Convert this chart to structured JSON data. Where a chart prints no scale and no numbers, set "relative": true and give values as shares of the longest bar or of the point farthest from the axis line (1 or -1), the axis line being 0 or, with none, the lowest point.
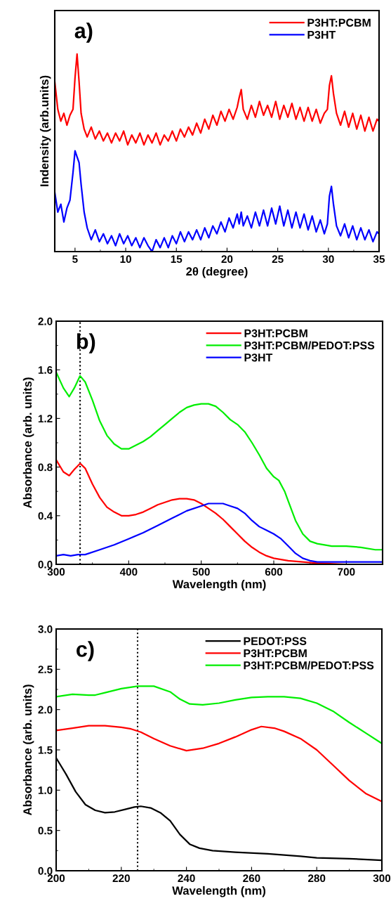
{
  "chart_data": [
    {
      "type": "line",
      "title": "a)",
      "xlabel": "2θ (degree)",
      "ylabel": "Indensity (arb.units)",
      "relative": true,
      "tick_labels": "x",
      "legend": "top right",
      "x": [
        3.0,
        3.3,
        3.6,
        3.9,
        4.2,
        4.5,
        4.8,
        5.0,
        5.2,
        5.4,
        5.6,
        5.9,
        6.2,
        6.6,
        7.0,
        7.4,
        7.8,
        8.2,
        8.6,
        9.0,
        9.4,
        9.8,
        10.2,
        10.6,
        11.0,
        11.4,
        11.8,
        12.2,
        12.6,
        13.0,
        13.4,
        13.8,
        14.2,
        14.6,
        15.0,
        15.4,
        15.8,
        16.2,
        16.6,
        17.0,
        17.4,
        17.8,
        18.2,
        18.6,
        19.0,
        19.4,
        19.8,
        20.2,
        20.6,
        21.0,
        21.2,
        21.4,
        21.6,
        22.0,
        22.4,
        22.8,
        23.2,
        23.6,
        24.0,
        24.4,
        24.8,
        25.2,
        25.6,
        26.0,
        26.4,
        26.8,
        27.2,
        27.6,
        28.0,
        28.4,
        28.8,
        29.2,
        29.6,
        29.9,
        30.1,
        30.3,
        30.5,
        30.8,
        31.2,
        31.6,
        32.0,
        32.4,
        32.8,
        33.2,
        33.6,
        34.0,
        34.4,
        34.8,
        35.0
      ],
      "xlim": [
        3,
        35
      ],
      "xticks": [
        5,
        10,
        15,
        20,
        25,
        30,
        35
      ],
      "series": [
        {
          "name": "P3HT:PCBM",
          "color": "#ff0000",
          "values": [
            0.86,
            0.72,
            0.66,
            0.7,
            0.64,
            0.69,
            0.72,
            0.88,
            1.0,
            0.86,
            0.7,
            0.62,
            0.58,
            0.63,
            0.57,
            0.61,
            0.56,
            0.6,
            0.55,
            0.6,
            0.56,
            0.61,
            0.54,
            0.59,
            0.55,
            0.6,
            0.54,
            0.59,
            0.55,
            0.6,
            0.54,
            0.59,
            0.56,
            0.61,
            0.56,
            0.62,
            0.58,
            0.63,
            0.59,
            0.65,
            0.6,
            0.67,
            0.62,
            0.69,
            0.64,
            0.71,
            0.66,
            0.72,
            0.67,
            0.73,
            0.78,
            0.82,
            0.72,
            0.67,
            0.74,
            0.68,
            0.76,
            0.69,
            0.74,
            0.68,
            0.76,
            0.67,
            0.74,
            0.68,
            0.75,
            0.67,
            0.73,
            0.66,
            0.73,
            0.66,
            0.72,
            0.65,
            0.7,
            0.72,
            0.84,
            0.89,
            0.8,
            0.7,
            0.64,
            0.71,
            0.63,
            0.7,
            0.62,
            0.69,
            0.61,
            0.68,
            0.61,
            0.67,
            0.66
          ]
        },
        {
          "name": "P3HT",
          "color": "#0000ff",
          "values": [
            0.3,
            0.2,
            0.24,
            0.15,
            0.22,
            0.26,
            0.4,
            0.51,
            0.48,
            0.45,
            0.34,
            0.2,
            0.12,
            0.06,
            0.11,
            0.05,
            0.09,
            0.04,
            0.08,
            0.03,
            0.09,
            0.04,
            0.08,
            0.03,
            0.07,
            0.02,
            0.07,
            0.03,
            0.0,
            0.06,
            0.02,
            0.07,
            0.02,
            0.08,
            0.04,
            0.1,
            0.05,
            0.1,
            0.06,
            0.11,
            0.06,
            0.12,
            0.07,
            0.13,
            0.09,
            0.15,
            0.1,
            0.17,
            0.12,
            0.19,
            0.14,
            0.2,
            0.13,
            0.18,
            0.12,
            0.2,
            0.13,
            0.21,
            0.13,
            0.22,
            0.14,
            0.23,
            0.13,
            0.21,
            0.12,
            0.2,
            0.12,
            0.19,
            0.11,
            0.18,
            0.1,
            0.16,
            0.09,
            0.14,
            0.28,
            0.33,
            0.24,
            0.13,
            0.08,
            0.14,
            0.07,
            0.13,
            0.06,
            0.12,
            0.06,
            0.11,
            0.05,
            0.1,
            0.09
          ]
        }
      ]
    },
    {
      "type": "line",
      "title": "b)",
      "xlabel": "Wavelength (nm)",
      "ylabel": "Absorbance (arb. units)",
      "legend": "top right",
      "xlim": [
        300,
        750
      ],
      "xticks": [
        300,
        400,
        500,
        600,
        700
      ],
      "ylim": [
        0,
        2.0
      ],
      "yticks": [
        {
          "value": 0,
          "label": "0.0"
        },
        {
          "value": 0.4,
          "label": "0.4"
        },
        {
          "value": 0.8,
          "label": "0.8"
        },
        {
          "value": 1.2,
          "label": "1.2"
        },
        {
          "value": 1.6,
          "label": "1.6"
        },
        {
          "value": 2.0,
          "label": "2.0"
        }
      ],
      "ref_lines": [
        {
          "axis": "x",
          "value": 333,
          "label": null,
          "color": "#000000",
          "line_style": "dotted"
        }
      ],
      "series": [
        {
          "name": "P3HT:PCBM",
          "color": "#ff0000",
          "x": [
            300,
            310,
            318,
            325,
            333,
            340,
            350,
            360,
            370,
            380,
            390,
            400,
            410,
            420,
            430,
            440,
            450,
            460,
            470,
            480,
            490,
            500,
            510,
            520,
            530,
            540,
            550,
            560,
            570,
            580,
            590,
            600,
            620,
            640,
            660,
            700,
            750
          ],
          "values": [
            0.86,
            0.76,
            0.73,
            0.78,
            0.83,
            0.79,
            0.66,
            0.55,
            0.47,
            0.43,
            0.4,
            0.4,
            0.41,
            0.43,
            0.46,
            0.49,
            0.51,
            0.53,
            0.54,
            0.54,
            0.53,
            0.5,
            0.46,
            0.42,
            0.37,
            0.31,
            0.25,
            0.19,
            0.14,
            0.1,
            0.07,
            0.05,
            0.03,
            0.02,
            0.01,
            0.0,
            0.0
          ]
        },
        {
          "name": "P3HT:PCBM/PEDOT:PSS",
          "color": "#00ee00",
          "x": [
            300,
            310,
            318,
            325,
            333,
            340,
            350,
            360,
            370,
            380,
            390,
            400,
            410,
            420,
            430,
            440,
            450,
            460,
            470,
            480,
            490,
            500,
            510,
            520,
            530,
            540,
            550,
            560,
            570,
            580,
            590,
            600,
            607,
            615,
            620,
            630,
            640,
            650,
            660,
            680,
            700,
            720,
            740,
            750
          ],
          "values": [
            1.58,
            1.45,
            1.38,
            1.45,
            1.55,
            1.5,
            1.35,
            1.18,
            1.06,
            0.99,
            0.95,
            0.95,
            0.98,
            1.01,
            1.05,
            1.1,
            1.15,
            1.2,
            1.25,
            1.29,
            1.31,
            1.32,
            1.32,
            1.3,
            1.25,
            1.19,
            1.15,
            1.09,
            1.0,
            0.9,
            0.79,
            0.72,
            0.69,
            0.6,
            0.52,
            0.36,
            0.25,
            0.19,
            0.17,
            0.15,
            0.15,
            0.14,
            0.12,
            0.12
          ]
        },
        {
          "name": "P3HT",
          "color": "#0000ff",
          "x": [
            300,
            310,
            320,
            330,
            340,
            360,
            380,
            400,
            420,
            440,
            460,
            480,
            500,
            510,
            520,
            530,
            540,
            550,
            560,
            570,
            580,
            590,
            600,
            610,
            620,
            630,
            640,
            650,
            660,
            700,
            750
          ],
          "values": [
            0.07,
            0.08,
            0.07,
            0.08,
            0.08,
            0.12,
            0.16,
            0.21,
            0.26,
            0.32,
            0.38,
            0.44,
            0.48,
            0.5,
            0.5,
            0.5,
            0.48,
            0.46,
            0.42,
            0.36,
            0.31,
            0.28,
            0.25,
            0.21,
            0.15,
            0.09,
            0.05,
            0.03,
            0.02,
            0.02,
            0.02
          ]
        }
      ]
    },
    {
      "type": "line",
      "title": "c)",
      "xlabel": "Wavelength (nm)",
      "ylabel": "Absorbance (arb. units)",
      "legend": "top right",
      "xlim": [
        200,
        300
      ],
      "xticks": [
        200,
        220,
        240,
        260,
        280,
        300
      ],
      "ylim": [
        0,
        3.0
      ],
      "yticks": [
        {
          "value": 0,
          "label": "0.0"
        },
        {
          "value": 0.5,
          "label": "0.5"
        },
        {
          "value": 1.0,
          "label": "1.0"
        },
        {
          "value": 1.5,
          "label": "1.5"
        },
        {
          "value": 2.0,
          "label": "2.0"
        },
        {
          "value": 2.5,
          "label": "2.5"
        },
        {
          "value": 3.0,
          "label": "3.0"
        }
      ],
      "ref_lines": [
        {
          "axis": "x",
          "value": 225,
          "label": null,
          "color": "#000000",
          "line_style": "dotted"
        }
      ],
      "series": [
        {
          "name": "PEDOT:PSS",
          "color": "#000000",
          "x": [
            200,
            203,
            206,
            209,
            212,
            215,
            218,
            221,
            224,
            226,
            229,
            232,
            235,
            238,
            241,
            244,
            248,
            255,
            265,
            275,
            280,
            290,
            300
          ],
          "values": [
            1.4,
            1.2,
            0.98,
            0.82,
            0.75,
            0.72,
            0.73,
            0.76,
            0.79,
            0.8,
            0.78,
            0.72,
            0.62,
            0.45,
            0.33,
            0.28,
            0.25,
            0.23,
            0.21,
            0.18,
            0.16,
            0.15,
            0.13
          ]
        },
        {
          "name": "P3HT:PCBM",
          "color": "#ff0000",
          "x": [
            200,
            205,
            210,
            215,
            220,
            223,
            226,
            230,
            235,
            240,
            245,
            250,
            255,
            260,
            263,
            267,
            270,
            275,
            280,
            285,
            290,
            295,
            300
          ],
          "values": [
            1.74,
            1.77,
            1.8,
            1.8,
            1.78,
            1.76,
            1.72,
            1.64,
            1.55,
            1.49,
            1.52,
            1.58,
            1.66,
            1.75,
            1.79,
            1.77,
            1.73,
            1.64,
            1.5,
            1.31,
            1.12,
            0.96,
            0.86
          ]
        },
        {
          "name": "P3HT:PCBM/PEDOT:PSS",
          "color": "#00ee00",
          "x": [
            200,
            205,
            210,
            212,
            215,
            220,
            225,
            230,
            235,
            238,
            241,
            245,
            250,
            255,
            260,
            265,
            270,
            275,
            280,
            285,
            290,
            295,
            300
          ],
          "values": [
            2.16,
            2.19,
            2.18,
            2.18,
            2.21,
            2.26,
            2.29,
            2.29,
            2.22,
            2.13,
            2.07,
            2.06,
            2.08,
            2.12,
            2.15,
            2.16,
            2.16,
            2.14,
            2.08,
            1.98,
            1.84,
            1.71,
            1.58
          ]
        }
      ]
    }
  ]
}
